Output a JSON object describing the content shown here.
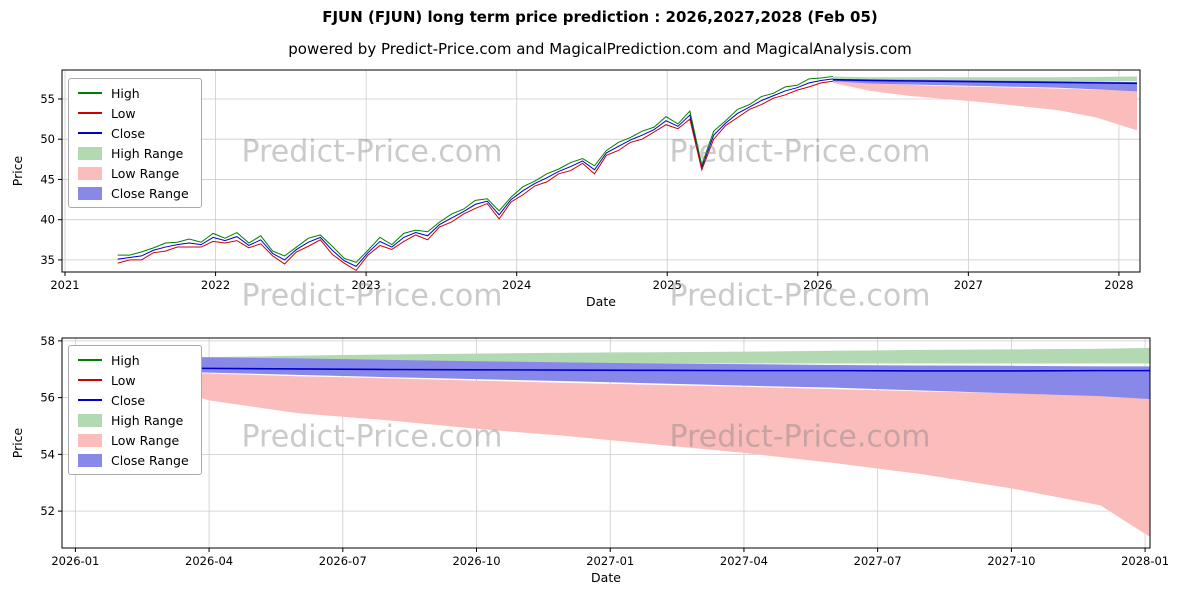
{
  "title": "FJUN (FJUN) long term price prediction : 2026,2027,2028 (Feb 05)",
  "subtitle": "powered by Predict-Price.com and MagicalPrediction.com and MagicalAnalysis.com",
  "watermark": {
    "text": "Predict-Price.com"
  },
  "legend_labels": [
    "High",
    "Low",
    "Close",
    "High Range",
    "Low Range",
    "Close Range"
  ],
  "colors": {
    "high": "#008000",
    "low": "#cc0000",
    "close": "#0000cc",
    "high_range": "#b3d9b3",
    "low_range": "#fbbcbc",
    "close_range": "#8888e8",
    "grid": "#cccccc",
    "spine": "#000000"
  },
  "chart_data": [
    {
      "type": "line",
      "name": "historical-and-forecast-chart",
      "xlabel": "Date",
      "ylabel": "Price",
      "xlim": [
        2020.98,
        2028.14
      ],
      "ylim": [
        33.5,
        58.6
      ],
      "xticks": [
        {
          "v": 2021,
          "label": "2021"
        },
        {
          "v": 2022,
          "label": "2022"
        },
        {
          "v": 2023,
          "label": "2023"
        },
        {
          "v": 2024,
          "label": "2024"
        },
        {
          "v": 2025,
          "label": "2025"
        },
        {
          "v": 2026,
          "label": "2026"
        },
        {
          "v": 2027,
          "label": "2027"
        },
        {
          "v": 2028,
          "label": "2028"
        }
      ],
      "yticks": [
        {
          "v": 35,
          "label": "35"
        },
        {
          "v": 40,
          "label": "40"
        },
        {
          "v": 45,
          "label": "45"
        },
        {
          "v": 50,
          "label": "50"
        },
        {
          "v": 55,
          "label": "55"
        }
      ],
      "history": {
        "x_start": 2021.35,
        "x_step": 0.07917,
        "close": [
          35.1,
          35.3,
          35.5,
          36.2,
          36.6,
          36.9,
          37.1,
          36.9,
          37.8,
          37.4,
          37.9,
          36.8,
          37.5,
          35.8,
          35.0,
          36.3,
          37.2,
          37.8,
          36.2,
          34.9,
          34.2,
          35.9,
          37.3,
          36.6,
          37.8,
          38.4,
          38.0,
          39.4,
          40.2,
          41.0,
          41.9,
          42.3,
          40.6,
          42.5,
          43.6,
          44.5,
          45.2,
          46.0,
          46.6,
          47.3,
          46.2,
          48.3,
          49.1,
          49.9,
          50.5,
          51.2,
          52.3,
          51.6,
          53.0,
          46.5,
          50.5,
          52.0,
          53.2,
          54.0,
          54.8,
          55.4,
          56.0,
          56.4,
          57.0,
          57.3,
          57.5
        ],
        "high": [
          35.6,
          35.6,
          36.0,
          36.5,
          37.1,
          37.2,
          37.6,
          37.2,
          38.3,
          37.7,
          38.4,
          37.1,
          38.0,
          36.1,
          35.5,
          36.6,
          37.7,
          38.1,
          36.7,
          35.2,
          34.7,
          36.2,
          37.8,
          36.9,
          38.3,
          38.7,
          38.5,
          39.7,
          40.7,
          41.3,
          42.4,
          42.6,
          41.1,
          42.8,
          44.1,
          44.8,
          45.7,
          46.3,
          47.1,
          47.6,
          46.7,
          48.6,
          49.6,
          50.2,
          51.0,
          51.5,
          52.8,
          51.9,
          53.5,
          46.8,
          51.0,
          52.3,
          53.7,
          54.3,
          55.3,
          55.7,
          56.5,
          56.7,
          57.5,
          57.6,
          57.8
        ],
        "low": [
          34.6,
          35.0,
          35.0,
          35.9,
          36.1,
          36.6,
          36.6,
          36.6,
          37.3,
          37.1,
          37.4,
          36.5,
          37.0,
          35.5,
          34.5,
          36.0,
          36.7,
          37.5,
          35.7,
          34.6,
          33.7,
          35.6,
          36.8,
          36.3,
          37.3,
          38.1,
          37.5,
          39.1,
          39.7,
          40.7,
          41.4,
          42.0,
          40.1,
          42.2,
          43.1,
          44.2,
          44.7,
          45.7,
          46.1,
          47.0,
          45.7,
          48.0,
          48.6,
          49.6,
          50.0,
          50.9,
          51.8,
          51.3,
          52.5,
          46.2,
          50.0,
          51.7,
          52.7,
          53.7,
          54.3,
          55.1,
          55.5,
          56.1,
          56.5,
          57.0,
          57.2
        ]
      },
      "forecast": {
        "x": [
          2026.1,
          2026.35,
          2026.6,
          2026.85,
          2027.1,
          2027.35,
          2027.6,
          2027.85,
          2028.12
        ],
        "high_top": [
          57.8,
          57.7,
          57.7,
          57.7,
          57.7,
          57.7,
          57.7,
          57.75,
          57.8
        ],
        "high_bot": [
          57.3,
          57.2,
          57.2,
          57.2,
          57.2,
          57.2,
          57.2,
          57.2,
          57.2
        ],
        "low_top": [
          57.2,
          56.9,
          56.75,
          56.6,
          56.5,
          56.4,
          56.3,
          56.15,
          56.0
        ],
        "low_bot": [
          57.0,
          56.0,
          55.4,
          55.0,
          54.6,
          54.1,
          53.6,
          52.7,
          51.1
        ],
        "close_top": [
          57.5,
          57.45,
          57.4,
          57.35,
          57.3,
          57.25,
          57.2,
          57.15,
          57.1
        ],
        "close_bot": [
          57.2,
          56.9,
          56.8,
          56.7,
          56.6,
          56.5,
          56.4,
          56.2,
          55.95
        ],
        "close": [
          57.4,
          57.3,
          57.25,
          57.2,
          57.15,
          57.1,
          57.05,
          57.0,
          56.95
        ]
      }
    },
    {
      "type": "area",
      "name": "forecast-detail-chart",
      "xlabel": "Date",
      "ylabel": "Price",
      "x_unit": "months from 2026-01",
      "xlim": [
        -0.3,
        24.11
      ],
      "ylim": [
        50.7,
        58.1
      ],
      "xticks": [
        {
          "v": 0,
          "label": "2026-01"
        },
        {
          "v": 3,
          "label": "2026-04"
        },
        {
          "v": 6,
          "label": "2026-07"
        },
        {
          "v": 9,
          "label": "2026-10"
        },
        {
          "v": 12,
          "label": "2027-01"
        },
        {
          "v": 15,
          "label": "2027-04"
        },
        {
          "v": 18,
          "label": "2027-07"
        },
        {
          "v": 21,
          "label": "2027-10"
        },
        {
          "v": 24,
          "label": "2028-01"
        }
      ],
      "yticks": [
        {
          "v": 52,
          "label": "52"
        },
        {
          "v": 54,
          "label": "54"
        },
        {
          "v": 56,
          "label": "56"
        },
        {
          "v": 58,
          "label": "58"
        }
      ],
      "forecast": {
        "x": [
          1,
          3,
          5,
          7,
          9,
          11,
          13,
          15,
          17,
          19,
          21,
          23,
          24.1
        ],
        "high_top": [
          57.35,
          57.42,
          57.48,
          57.52,
          57.55,
          57.58,
          57.6,
          57.62,
          57.65,
          57.68,
          57.7,
          57.72,
          57.75
        ],
        "high_bot": [
          57.15,
          57.16,
          57.18,
          57.2,
          57.2,
          57.2,
          57.2,
          57.2,
          57.2,
          57.2,
          57.2,
          57.2,
          57.2
        ],
        "low_top": [
          56.95,
          56.85,
          56.75,
          56.68,
          56.6,
          56.52,
          56.45,
          56.38,
          56.3,
          56.22,
          56.15,
          56.08,
          56.0
        ],
        "low_bot": [
          56.85,
          55.9,
          55.45,
          55.2,
          54.9,
          54.65,
          54.35,
          54.05,
          53.7,
          53.3,
          52.8,
          52.2,
          51.1
        ],
        "close_top": [
          57.45,
          57.42,
          57.38,
          57.33,
          57.28,
          57.24,
          57.2,
          57.18,
          57.15,
          57.13,
          57.12,
          57.1,
          57.1
        ],
        "close_bot": [
          56.95,
          56.88,
          56.8,
          56.72,
          56.65,
          56.58,
          56.5,
          56.42,
          56.35,
          56.25,
          56.15,
          56.05,
          55.95
        ],
        "close": [
          57.05,
          57.03,
          57.01,
          56.99,
          56.98,
          56.97,
          56.96,
          56.95,
          56.95,
          56.94,
          56.94,
          56.95,
          56.95
        ]
      }
    }
  ]
}
